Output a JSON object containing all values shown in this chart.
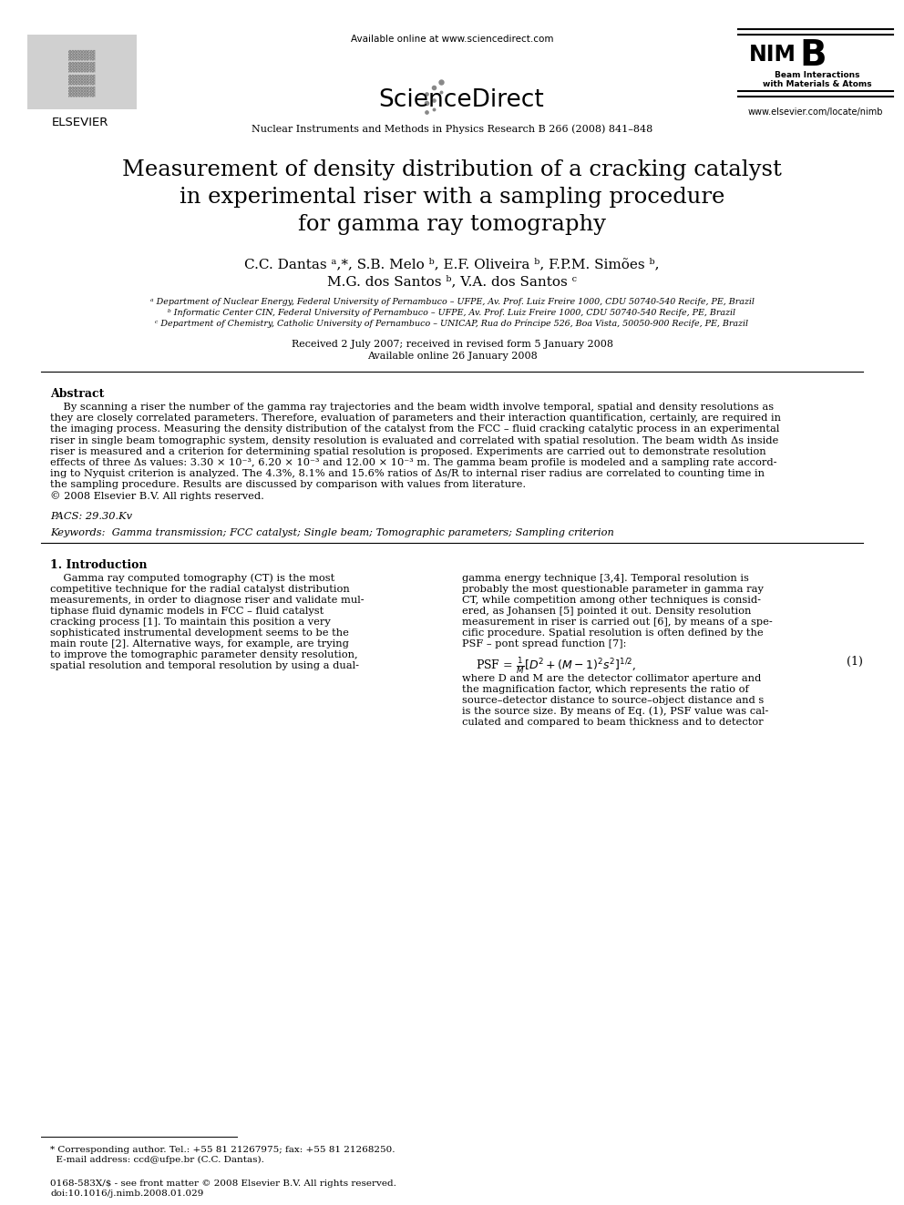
{
  "title_line1": "Measurement of density distribution of a cracking catalyst",
  "title_line2": "in experimental riser with a sampling procedure",
  "title_line3": "for gamma ray tomography",
  "authors_line1": "C.C. Dantas ᵃ,*, S.B. Melo ᵇ, E.F. Oliveira ᵇ, F.P.M. Simões ᵇ,",
  "authors_line2": "M.G. dos Santos ᵇ, V.A. dos Santos ᶜ",
  "affil_a": "ᵃ Department of Nuclear Energy, Federal University of Pernambuco – UFPE, Av. Prof. Luiz Freire 1000, CDU 50740-540 Recife, PE, Brazil",
  "affil_b": "ᵇ Informatic Center CIN, Federal University of Pernambuco – UFPE, Av. Prof. Luiz Freire 1000, CDU 50740-540 Recife, PE, Brazil",
  "affil_c": "ᶜ Department of Chemistry, Catholic University of Pernambuco – UNICAP, Rua do Príncipe 526, Boa Vista, 50050-900 Recife, PE, Brazil",
  "received": "Received 2 July 2007; received in revised form 5 January 2008",
  "available": "Available online 26 January 2008",
  "journal": "Nuclear Instruments and Methods in Physics Research B 266 (2008) 841–848",
  "avail_online": "Available online at www.sciencedirect.com",
  "url_elsevier": "www.elsevier.com/locate/nimb",
  "abstract_title": "Abstract",
  "pacs": "PACS: 29.30.Kv",
  "keywords": "Keywords:  Gamma transmission; FCC catalyst; Single beam; Tomographic parameters; Sampling criterion",
  "section1_title": "1. Introduction",
  "footnote1": "* Corresponding author. Tel.: +55 81 21267975; fax: +55 81 21268250.",
  "footnote2": "  E-mail address: ccd@ufpe.br (C.C. Dantas).",
  "copyright1": "0168-583X/$ - see front matter © 2008 Elsevier B.V. All rights reserved.",
  "copyright2": "doi:10.1016/j.nimb.2008.01.029",
  "bg_color": "#ffffff",
  "text_color": "#000000",
  "abstract_lines": [
    "    By scanning a riser the number of the gamma ray trajectories and the beam width involve temporal, spatial and density resolutions as",
    "they are closely correlated parameters. Therefore, evaluation of parameters and their interaction quantification, certainly, are required in",
    "the imaging process. Measuring the density distribution of the catalyst from the FCC – fluid cracking catalytic process in an experimental",
    "riser in single beam tomographic system, density resolution is evaluated and correlated with spatial resolution. The beam width Δs inside",
    "riser is measured and a criterion for determining spatial resolution is proposed. Experiments are carried out to demonstrate resolution",
    "effects of three Δs values: 3.30 × 10⁻³, 6.20 × 10⁻³ and 12.00 × 10⁻³ m. The gamma beam profile is modeled and a sampling rate accord-",
    "ing to Nyquist criterion is analyzed. The 4.3%, 8.1% and 15.6% ratios of Δs/R to internal riser radius are correlated to counting time in",
    "the sampling procedure. Results are discussed by comparison with values from literature.",
    "© 2008 Elsevier B.V. All rights reserved."
  ],
  "col1_lines": [
    "    Gamma ray computed tomography (CT) is the most",
    "competitive technique for the radial catalyst distribution",
    "measurements, in order to diagnose riser and validate mul-",
    "tiphase fluid dynamic models in FCC – fluid catalyst",
    "cracking process [1]. To maintain this position a very",
    "sophisticated instrumental development seems to be the",
    "main route [2]. Alternative ways, for example, are trying",
    "to improve the tomographic parameter density resolution,",
    "spatial resolution and temporal resolution by using a dual-"
  ],
  "col2_lines": [
    "gamma energy technique [3,4]. Temporal resolution is",
    "probably the most questionable parameter in gamma ray",
    "CT, while competition among other techniques is consid-",
    "ered, as Johansen [5] pointed it out. Density resolution",
    "measurement in riser is carried out [6], by means of a spe-",
    "cific procedure. Spatial resolution is often defined by the",
    "PSF – pont spread function [7]:"
  ],
  "psf_desc_lines": [
    "where D and M are the detector collimator aperture and",
    "the magnification factor, which represents the ratio of",
    "source–detector distance to source–object distance and s",
    "is the source size. By means of Eq. (1), PSF value was cal-",
    "culated and compared to beam thickness and to detector"
  ]
}
